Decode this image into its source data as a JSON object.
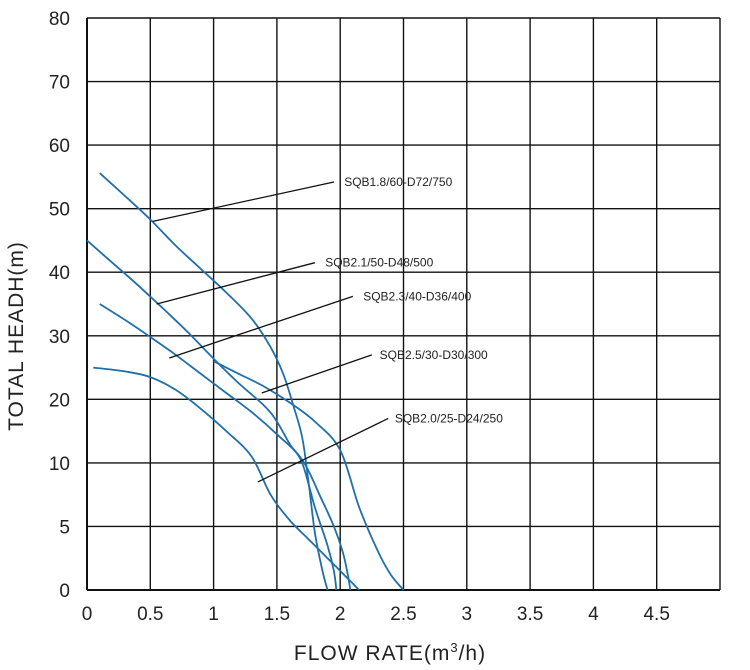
{
  "chart_data": {
    "type": "line",
    "xlabel": "FLOW RATE(m",
    "xlabel_sup": "3",
    "xlabel_suffix": "/h)",
    "ylabel": "TOTAL HEADH(m)",
    "x_ticks": [
      "0",
      "0.5",
      "1",
      "1.5",
      "2",
      "2.5",
      "3",
      "3.5",
      "4",
      "4.5"
    ],
    "y_ticks": [
      "0",
      "5",
      "10",
      "20",
      "30",
      "40",
      "50",
      "60",
      "70",
      "80"
    ],
    "grid": true,
    "series_color": "#1f6fa8",
    "series": [
      {
        "name": "SQB1.8/60-D72/750",
        "points": [
          [
            0.1,
            55.6
          ],
          [
            0.3,
            52.0
          ],
          [
            0.5,
            48.3
          ],
          [
            0.7,
            44.2
          ],
          [
            0.9,
            40.5
          ],
          [
            1.1,
            36.8
          ],
          [
            1.3,
            32.7
          ],
          [
            1.45,
            28.2
          ],
          [
            1.55,
            24.0
          ],
          [
            1.63,
            19.0
          ],
          [
            1.7,
            14.0
          ],
          [
            1.75,
            8.5
          ],
          [
            1.8,
            4.5
          ],
          [
            1.86,
            1.5
          ],
          [
            1.9,
            0
          ]
        ],
        "label": "SQB1.8/60-D72/750",
        "label_pos": [
          2.0,
          54.2
        ],
        "leader_from": [
          0.52,
          48.0
        ],
        "leader_to": [
          1.95,
          54.2
        ]
      },
      {
        "name": "SQB2.1/50-D48/500",
        "points": [
          [
            0.0,
            45.0
          ],
          [
            0.2,
            41.5
          ],
          [
            0.4,
            38.0
          ],
          [
            0.6,
            34.3
          ],
          [
            0.8,
            30.5
          ],
          [
            1.0,
            26.4
          ],
          [
            1.2,
            22.5
          ],
          [
            1.4,
            19.0
          ],
          [
            1.5,
            16.5
          ],
          [
            1.6,
            13.0
          ],
          [
            1.7,
            10.0
          ],
          [
            1.8,
            6.5
          ],
          [
            1.9,
            3.5
          ],
          [
            1.95,
            1.5
          ],
          [
            1.97,
            0
          ]
        ],
        "label": "SQB2.1/50-D48/500",
        "label_pos": [
          1.85,
          41.5
        ],
        "leader_from": [
          0.55,
          35.0
        ],
        "leader_to": [
          1.8,
          41.5
        ]
      },
      {
        "name": "SQB2.3/40-D36/400",
        "points": [
          [
            0.1,
            35.0
          ],
          [
            0.3,
            32.5
          ],
          [
            0.5,
            29.8
          ],
          [
            0.7,
            27.0
          ],
          [
            0.9,
            24.0
          ],
          [
            1.1,
            21.0
          ],
          [
            1.3,
            18.0
          ],
          [
            1.5,
            14.5
          ],
          [
            1.7,
            10.5
          ],
          [
            1.85,
            7.2
          ],
          [
            1.95,
            5.0
          ],
          [
            2.02,
            3.0
          ],
          [
            2.06,
            1.2
          ],
          [
            2.08,
            0
          ]
        ],
        "label": "SQB2.3/40-D36/400",
        "label_pos": [
          2.15,
          36.2
        ],
        "leader_from": [
          0.65,
          26.5
        ],
        "leader_to": [
          2.1,
          36.2
        ]
      },
      {
        "name": "SQB2.5/30-D30/300",
        "points": [
          [
            1.0,
            26.0
          ],
          [
            1.2,
            24.0
          ],
          [
            1.4,
            22.0
          ],
          [
            1.6,
            19.5
          ],
          [
            1.8,
            16.5
          ],
          [
            2.0,
            12.0
          ],
          [
            2.15,
            6.5
          ],
          [
            2.3,
            3.0
          ],
          [
            2.4,
            1.2
          ],
          [
            2.5,
            0
          ]
        ],
        "label": "SQB2.5/30-D30/300",
        "label_pos": [
          2.28,
          27.0
        ],
        "leader_from": [
          1.38,
          21.0
        ],
        "leader_to": [
          2.25,
          27.0
        ]
      },
      {
        "name": "SQB2.0/25-D24/250",
        "points": [
          [
            0.05,
            25.0
          ],
          [
            0.3,
            24.4
          ],
          [
            0.5,
            23.5
          ],
          [
            0.7,
            21.5
          ],
          [
            0.9,
            18.5
          ],
          [
            1.1,
            15.0
          ],
          [
            1.3,
            11.0
          ],
          [
            1.45,
            7.5
          ],
          [
            1.6,
            5.5
          ],
          [
            1.75,
            4.0
          ],
          [
            1.9,
            2.5
          ],
          [
            2.0,
            1.5
          ],
          [
            2.1,
            0.5
          ],
          [
            2.15,
            0
          ]
        ],
        "label": "SQB2.0/25-D24/250",
        "label_pos": [
          2.4,
          17.0
        ],
        "leader_from": [
          1.35,
          8.5
        ],
        "leader_to": [
          2.38,
          17.0
        ]
      }
    ]
  }
}
